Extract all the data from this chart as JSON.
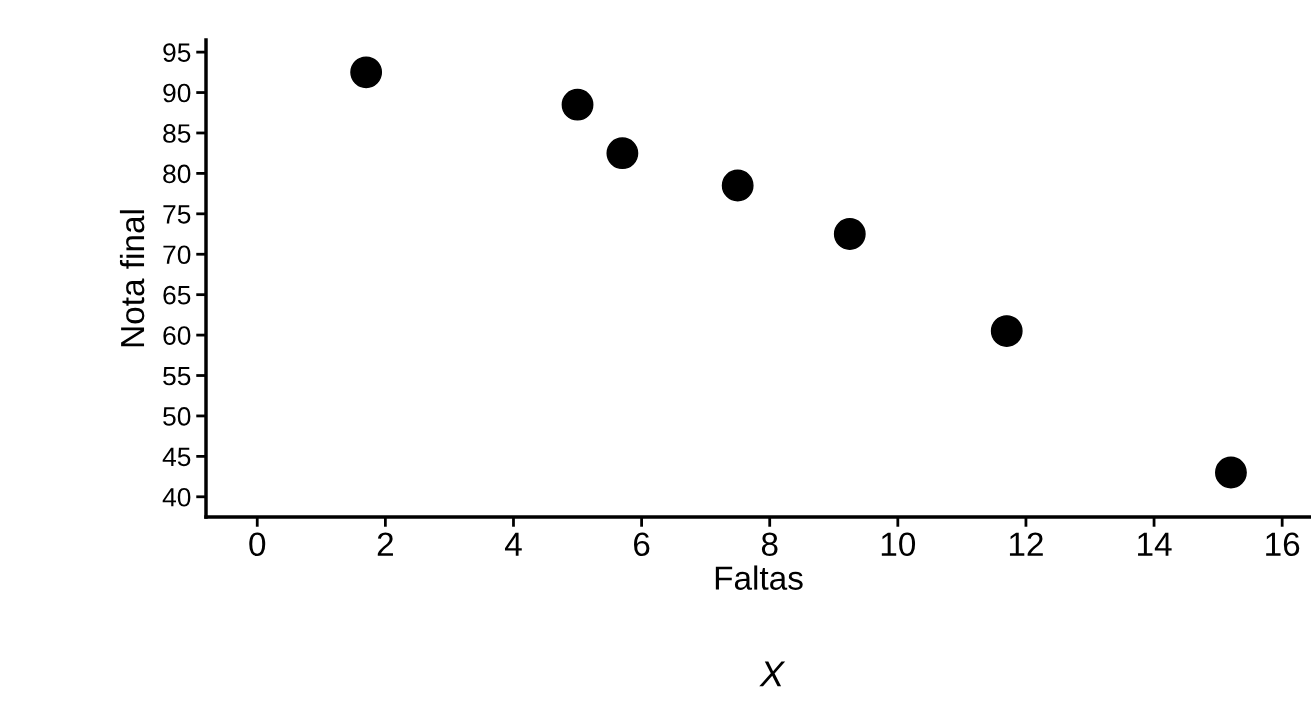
{
  "chart_data": {
    "type": "scatter",
    "xlabel": "Faltas",
    "ylabel": "Nota final",
    "annotations": [
      "X"
    ],
    "x": [
      1.7,
      5.0,
      5.7,
      7.5,
      9.25,
      11.7,
      15.2
    ],
    "values": [
      92.5,
      88.5,
      82.5,
      78.5,
      72.5,
      60.5,
      43
    ],
    "color": "#000000",
    "marker": "circle",
    "xlim": [
      -0.8,
      16.45
    ],
    "ylim": [
      37.5,
      96.5
    ],
    "xticks": [
      0,
      2,
      4,
      6,
      8,
      10,
      12,
      14,
      16
    ],
    "yticks": [
      40,
      45,
      50,
      55,
      60,
      65,
      70,
      75,
      80,
      85,
      90,
      95
    ],
    "grid": false,
    "legend": false
  }
}
